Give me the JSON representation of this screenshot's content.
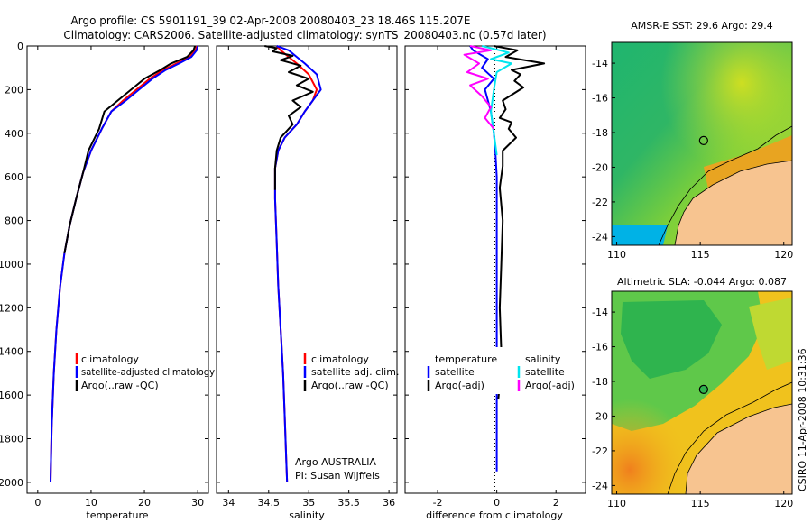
{
  "header": {
    "title": "Argo profile: CS 5901191_39 02-Apr-2008 20080403_23 18.46S 115.207E",
    "subtitle": "Climatology: CARS2006. Satellite-adjusted climatology: synTS_20080403.nc (0.57d later)"
  },
  "colors": {
    "climatology": "#ff0000",
    "satellite": "#0000ff",
    "argo": "#000000",
    "argo_adj_salinity": "#ff00ff",
    "satellite_salinity": "#00e5ee",
    "land": "#f7c490"
  },
  "chart_data": [
    {
      "id": "temperature",
      "type": "line",
      "xlabel": "temperature",
      "ylabel": "",
      "xlim": [
        -2,
        32
      ],
      "ylim": [
        2050,
        0
      ],
      "xticks": [
        "0",
        "10",
        "20",
        "30"
      ],
      "yticks": [
        "0",
        "200",
        "400",
        "600",
        "800",
        "1000",
        "1200",
        "1400",
        "1600",
        "1800",
        "2000"
      ],
      "legend": [
        "climatology",
        "satellite-adjusted climatology",
        "Argo(..raw -QC)"
      ],
      "series": [
        {
          "name": "climatology",
          "color": "#ff0000",
          "x": [
            29.8,
            29.6,
            28.5,
            26.0,
            23.5,
            21.0,
            18.5,
            16.0,
            13.8,
            12.0,
            10.0,
            8.5,
            7.2,
            6.0,
            5.0,
            4.2,
            3.5,
            3.0,
            2.6,
            2.4
          ],
          "y": [
            0,
            20,
            50,
            80,
            110,
            150,
            200,
            250,
            300,
            380,
            480,
            580,
            700,
            820,
            950,
            1100,
            1300,
            1500,
            1750,
            2000
          ]
        },
        {
          "name": "satellite-adjusted climatology",
          "color": "#0000ff",
          "x": [
            30.0,
            29.8,
            28.8,
            26.5,
            24.0,
            21.5,
            19.0,
            16.5,
            13.8,
            12.0,
            10.0,
            8.5,
            7.2,
            6.0,
            5.0,
            4.2,
            3.5,
            3.0,
            2.6,
            2.4
          ],
          "y": [
            0,
            20,
            50,
            80,
            110,
            150,
            200,
            250,
            300,
            380,
            480,
            580,
            700,
            820,
            950,
            1100,
            1300,
            1500,
            1750,
            2000
          ]
        },
        {
          "name": "Argo(..raw -QC)",
          "color": "#000000",
          "x": [
            29.5,
            29.2,
            28.0,
            25.0,
            23.0,
            20.0,
            17.5,
            15.0,
            12.5,
            11.5,
            9.5,
            8.5,
            7.2,
            6.0,
            5.0
          ],
          "y": [
            0,
            20,
            50,
            80,
            110,
            150,
            200,
            250,
            300,
            380,
            480,
            580,
            700,
            820,
            950
          ]
        }
      ]
    },
    {
      "id": "salinity",
      "type": "line",
      "xlabel": "salinity",
      "ylabel": "",
      "xlim": [
        33.85,
        36.1
      ],
      "ylim": [
        2050,
        0
      ],
      "xticks": [
        "34",
        "34.5",
        "35",
        "35.5",
        "36"
      ],
      "yticks": [],
      "legend": [
        "climatology",
        "satellite adj. clim.",
        "Argo(..raw -QC)"
      ],
      "annotations": [
        "Argo AUSTRALIA",
        "PI: Susan Wijffels"
      ],
      "series": [
        {
          "name": "climatology",
          "color": "#ff0000",
          "x": [
            34.6,
            34.65,
            34.75,
            34.85,
            35.0,
            35.1,
            35.05,
            34.95,
            34.85,
            34.7,
            34.62,
            34.58,
            34.58,
            34.6,
            34.62,
            34.65,
            34.68,
            34.7,
            34.72,
            34.73
          ],
          "y": [
            0,
            20,
            50,
            80,
            130,
            200,
            250,
            300,
            360,
            420,
            480,
            560,
            700,
            900,
            1100,
            1300,
            1500,
            1700,
            1900,
            2000
          ]
        },
        {
          "name": "satellite adj. clim.",
          "color": "#0000ff",
          "x": [
            34.6,
            34.75,
            34.85,
            34.95,
            35.1,
            35.15,
            35.05,
            34.95,
            34.85,
            34.7,
            34.62,
            34.58,
            34.58,
            34.6,
            34.62,
            34.65,
            34.68,
            34.7,
            34.72,
            34.73
          ],
          "y": [
            0,
            20,
            50,
            80,
            130,
            200,
            250,
            300,
            360,
            420,
            480,
            560,
            700,
            900,
            1100,
            1300,
            1500,
            1700,
            1900,
            2000
          ]
        },
        {
          "name": "Argo(..raw -QC)",
          "color": "#000000",
          "x": [
            34.45,
            34.6,
            34.55,
            34.8,
            34.65,
            34.9,
            34.75,
            35.0,
            34.85,
            35.05,
            34.8,
            34.9,
            34.75,
            34.8,
            34.65,
            34.6,
            34.58,
            34.58
          ],
          "y": [
            0,
            10,
            25,
            45,
            65,
            90,
            120,
            150,
            180,
            210,
            250,
            280,
            320,
            360,
            420,
            480,
            560,
            660
          ]
        }
      ]
    },
    {
      "id": "difference",
      "type": "line",
      "xlabel": "difference from climatology",
      "ylabel": "",
      "xlim": [
        -3.1,
        3.0
      ],
      "ylim": [
        2050,
        0
      ],
      "xticks": [
        "-2",
        "0",
        "2"
      ],
      "yticks": [],
      "legend_headers": [
        "temperature",
        "salinity"
      ],
      "legend": [
        "satellite",
        "Argo(-adj)",
        "satellite",
        "Argo(-adj)"
      ],
      "series": [
        {
          "name": "satellite",
          "group": "temperature",
          "color": "#0000ff",
          "x": [
            -0.9,
            -0.8,
            -0.3,
            -0.5,
            -0.1,
            -0.4,
            -0.2,
            -0.1,
            -0.05,
            0,
            0,
            0
          ],
          "y": [
            0,
            20,
            60,
            100,
            150,
            200,
            300,
            400,
            480,
            600,
            1000,
            1950
          ]
        },
        {
          "name": "Argo(-adj)",
          "group": "temperature",
          "color": "#000000",
          "x": [
            -0.1,
            0.7,
            0.3,
            1.6,
            0.5,
            0.8,
            0.6,
            0.9,
            0.2,
            0.3,
            0.1,
            0.5,
            0.4,
            0.65,
            0.2,
            0.2,
            0.1,
            0.2,
            0.15,
            0.1,
            0.15,
            0.1,
            0.05
          ],
          "y": [
            0,
            20,
            50,
            80,
            110,
            130,
            160,
            190,
            250,
            290,
            330,
            350,
            380,
            420,
            480,
            550,
            650,
            800,
            1000,
            1200,
            1400,
            1550,
            1620
          ]
        },
        {
          "name": "satellite",
          "group": "salinity",
          "color": "#00e5ee",
          "x": [
            -0.5,
            0.4,
            -0.2,
            0.5,
            0.0,
            -0.1,
            -0.2,
            -0.1,
            0.0
          ],
          "y": [
            0,
            30,
            60,
            80,
            120,
            200,
            300,
            400,
            500
          ]
        },
        {
          "name": "Argo(-adj)",
          "group": "salinity",
          "color": "#ff00ff",
          "x": [
            -0.9,
            -0.2,
            -1.1,
            -0.6,
            -1.0,
            -0.3,
            -0.9,
            -0.5,
            -0.2,
            -0.4,
            -0.1
          ],
          "y": [
            0,
            20,
            40,
            80,
            120,
            150,
            180,
            230,
            280,
            330,
            380
          ]
        }
      ]
    },
    {
      "id": "sst-map",
      "type": "heatmap",
      "title": "AMSR-E SST: 29.6 Argo: 29.4",
      "xlim": [
        109.7,
        120.5
      ],
      "ylim": [
        -24.5,
        -12.8
      ],
      "xticks": [
        "110",
        "115",
        "120"
      ],
      "yticks": [
        "-14",
        "-16",
        "-18",
        "-20",
        "-22",
        "-24"
      ],
      "marker": {
        "lon": 115.2,
        "lat": -18.46
      }
    },
    {
      "id": "sla-map",
      "type": "heatmap",
      "title": "Altimetric SLA: -0.044 Argo: 0.087",
      "xlim": [
        109.7,
        120.5
      ],
      "ylim": [
        -24.5,
        -12.8
      ],
      "xticks": [
        "110",
        "115",
        "120"
      ],
      "yticks": [
        "-14",
        "-16",
        "-18",
        "-20",
        "-22",
        "-24"
      ],
      "marker": {
        "lon": 115.2,
        "lat": -18.46
      }
    }
  ],
  "footer": {
    "stamp": "CSIRO 11-Apr-2008 10:31:36"
  }
}
